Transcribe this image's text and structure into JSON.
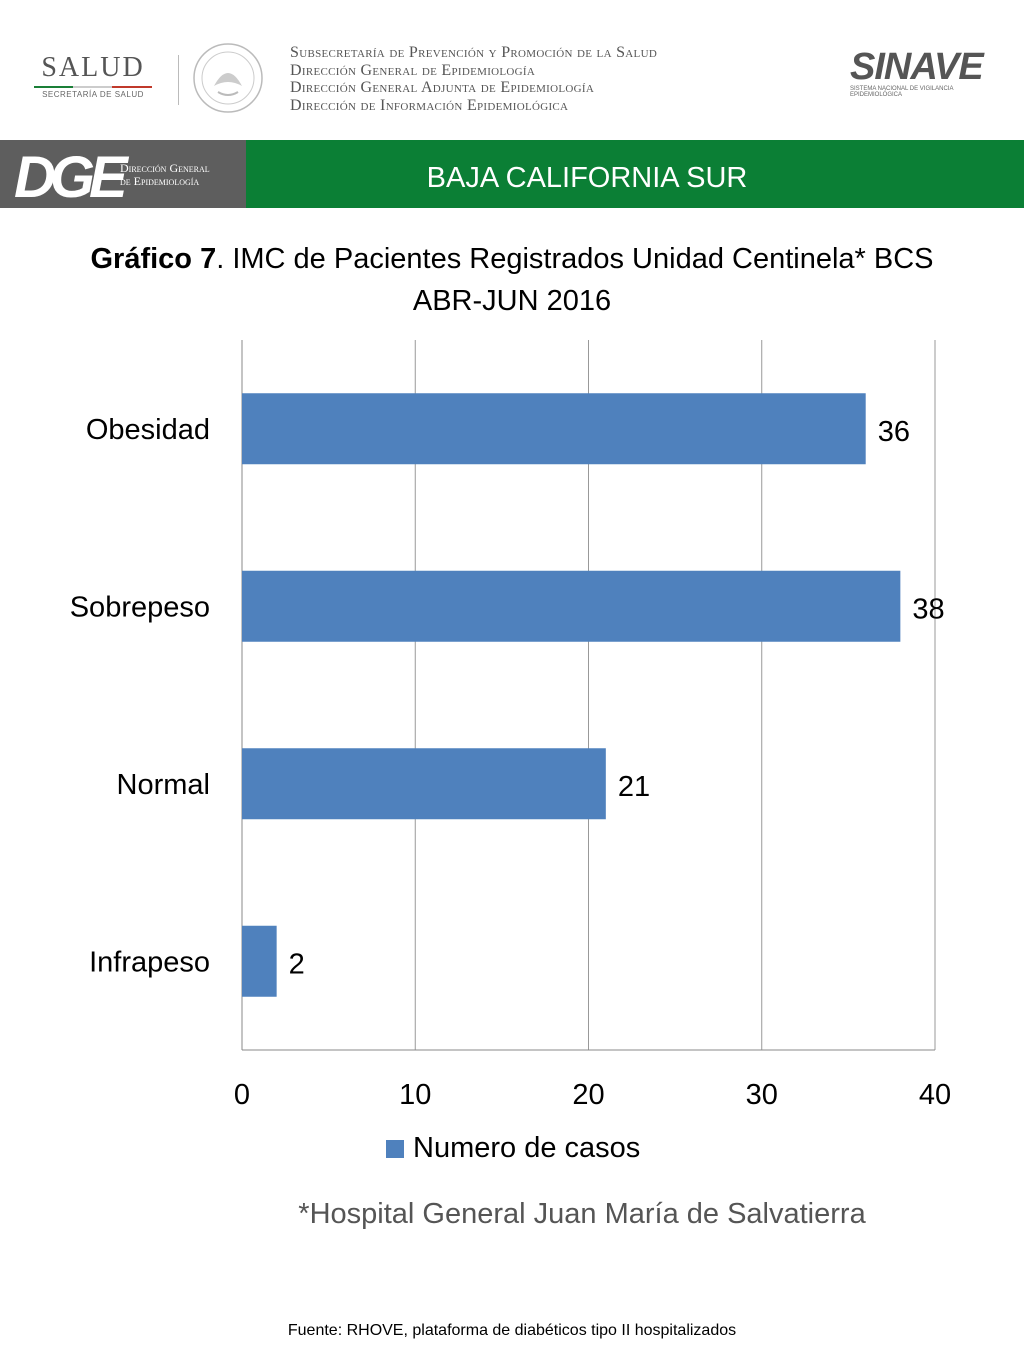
{
  "header": {
    "salud_logo_text": "SALUD",
    "salud_logo_subtext": "SECRETARÍA DE SALUD",
    "org_lines": [
      "Subsecretaría de Prevención y Promoción de la Salud",
      "Dirección General de Epidemiología",
      "Dirección General Adjunta de Epidemiología",
      "Dirección de Información Epidemiológica"
    ],
    "sinave_logo_text": "SINAVE",
    "sinave_logo_subtext": "SISTEMA NACIONAL DE VIGILANCIA EPIDEMIOLÓGICA"
  },
  "band": {
    "dge_logo_text": "DGE",
    "dge_subtext_1": "Dirección General",
    "dge_subtext_2": "de Epidemiología",
    "region": "BAJA CALIFORNIA SUR",
    "gray": "#5e5e5e",
    "green": "#0b7f35"
  },
  "title_bold": "Gráfico 7",
  "title_rest": ". IMC de Pacientes Registrados Unidad Centinela* BCS",
  "title_line2": "ABR-JUN 2016",
  "chart_data": {
    "type": "bar",
    "orientation": "horizontal",
    "categories": [
      "Obesidad",
      "Sobrepeso",
      "Normal",
      "Infrapeso"
    ],
    "series": [
      {
        "name": "Numero de casos",
        "values": [
          36,
          38,
          21,
          2
        ],
        "color": "#4f81bd"
      }
    ],
    "xlim": [
      0,
      40
    ],
    "xticks": [
      "0",
      "10",
      "20",
      "30",
      "40"
    ],
    "grid": true,
    "legend": "bottom",
    "data_labels": true
  },
  "legend_label": "Numero de casos",
  "footnote": "*Hospital General Juan María de Salvatierra",
  "source": "Fuente: RHOVE, plataforma de diabéticos tipo II hospitalizados"
}
